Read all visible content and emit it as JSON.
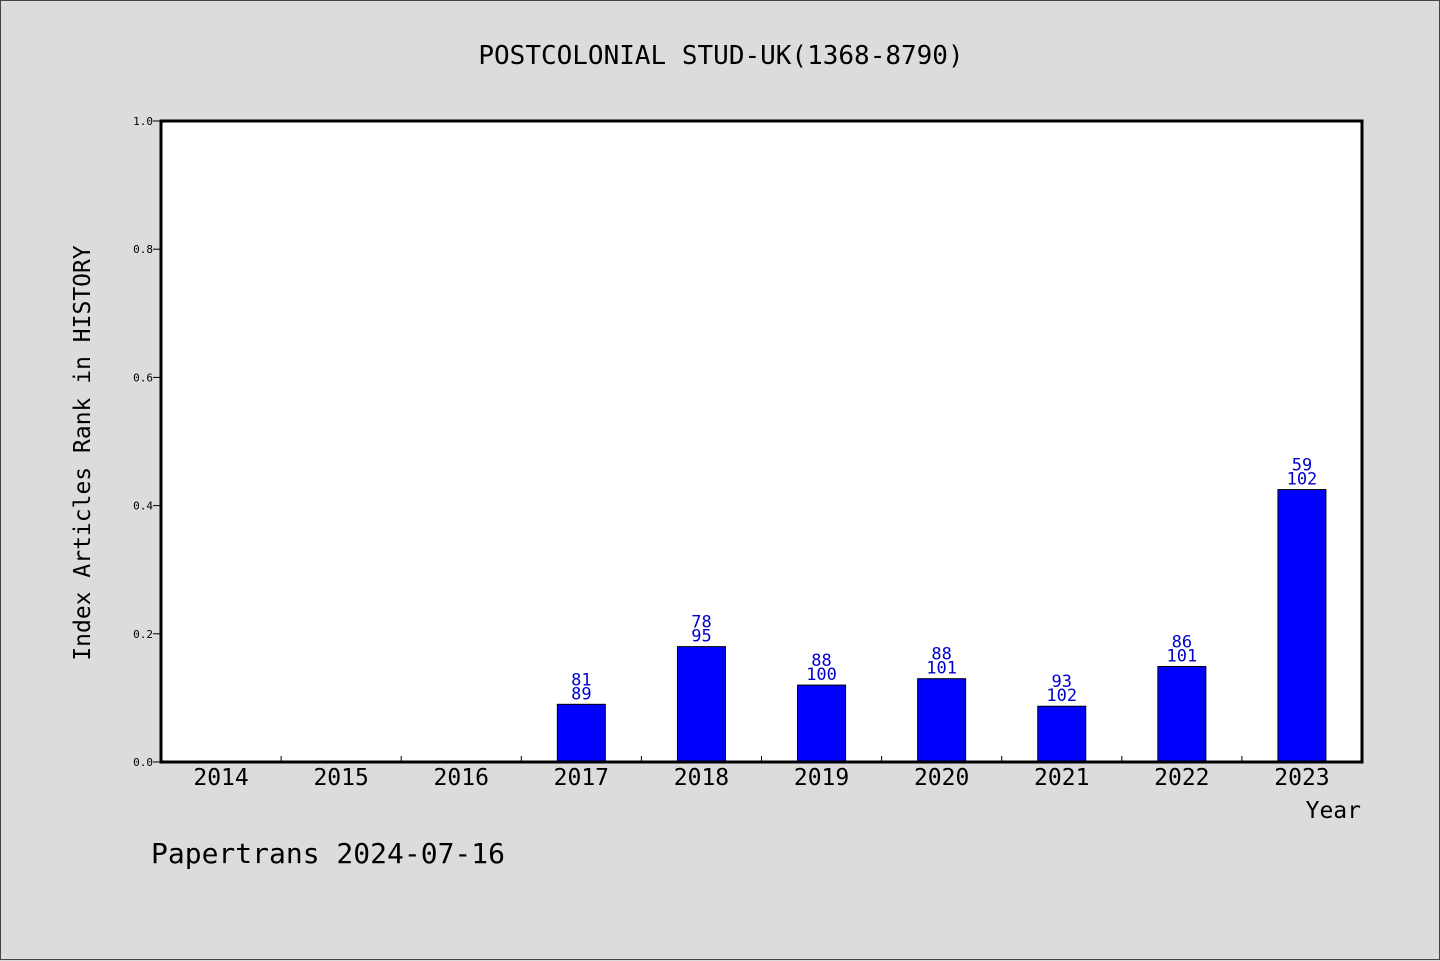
{
  "chart_data": {
    "type": "bar",
    "title": "POSTCOLONIAL STUD-UK(1368-8790)",
    "xlabel": "Year",
    "ylabel": "Index Articles Rank in HISTORY",
    "ylim": [
      0,
      1.0
    ],
    "yticks": [
      "0.0",
      "0.2",
      "0.4",
      "0.6",
      "0.8",
      "1.0"
    ],
    "categories": [
      "2014",
      "2015",
      "2016",
      "2017",
      "2018",
      "2019",
      "2020",
      "2021",
      "2022",
      "2023"
    ],
    "values": [
      0,
      0,
      0,
      0.09,
      0.18,
      0.12,
      0.13,
      0.087,
      0.149,
      0.425
    ],
    "rank": [
      null,
      null,
      null,
      "81",
      "78",
      "88",
      "88",
      "93",
      "86",
      "59"
    ],
    "total": [
      null,
      null,
      null,
      "89",
      "95",
      "100",
      "101",
      "102",
      "101",
      "102"
    ],
    "bar_color": "#0000ff",
    "label_color": "#0000cc",
    "grid": false,
    "legend": "none"
  },
  "footer": "Papertrans 2024-07-16"
}
